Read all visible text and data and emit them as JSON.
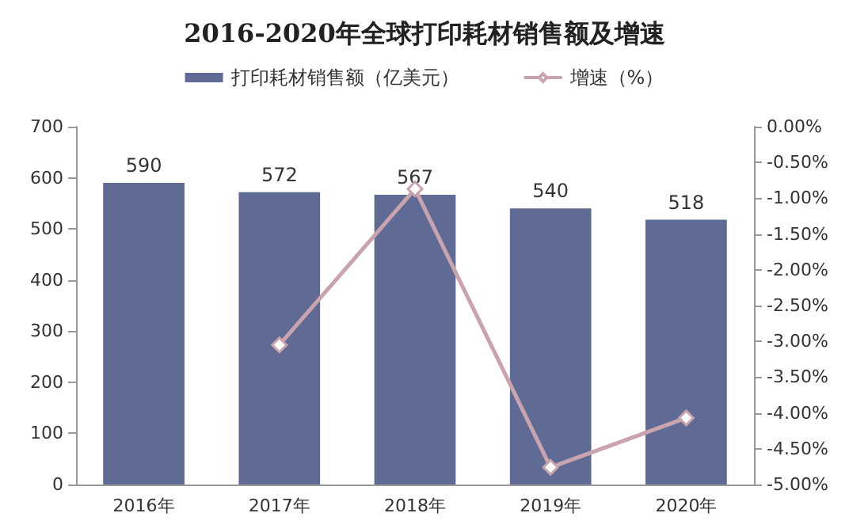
{
  "chart_data": {
    "type": "bar",
    "title": "2016-2020年全球打印耗材销售额及增速",
    "categories": [
      "2016年",
      "2017年",
      "2018年",
      "2019年",
      "2020年"
    ],
    "series": [
      {
        "name": "打印耗材销售额（亿美元）",
        "color": "#5f6b94",
        "values": [
          590,
          572,
          567,
          540,
          518
        ],
        "data_labels": true
      },
      {
        "name": "增速（%）",
        "type": "line",
        "axis": "y2",
        "color": "#c9a3ad",
        "marker": "diamond",
        "values": [
          null,
          -3.05,
          -0.87,
          -4.76,
          -4.07
        ]
      }
    ],
    "ylim": [
      0,
      700
    ],
    "yticks": [
      0,
      100,
      200,
      300,
      400,
      500,
      600,
      700
    ],
    "y2lim": [
      -5,
      0
    ],
    "y2ticks": [
      {
        "value": 0,
        "label": "0.00%"
      },
      {
        "value": -0.5,
        "label": "-0.50%"
      },
      {
        "value": -1,
        "label": "-1.00%"
      },
      {
        "value": -1.5,
        "label": "-1.50%"
      },
      {
        "value": -2,
        "label": "-2.00%"
      },
      {
        "value": -2.5,
        "label": "-2.50%"
      },
      {
        "value": -3,
        "label": "-3.00%"
      },
      {
        "value": -3.5,
        "label": "-3.50%"
      },
      {
        "value": -4,
        "label": "-4.00%"
      },
      {
        "value": -4.5,
        "label": "-4.50%"
      },
      {
        "value": -5,
        "label": "-5.00%"
      }
    ],
    "grid": false,
    "legend": "top"
  }
}
